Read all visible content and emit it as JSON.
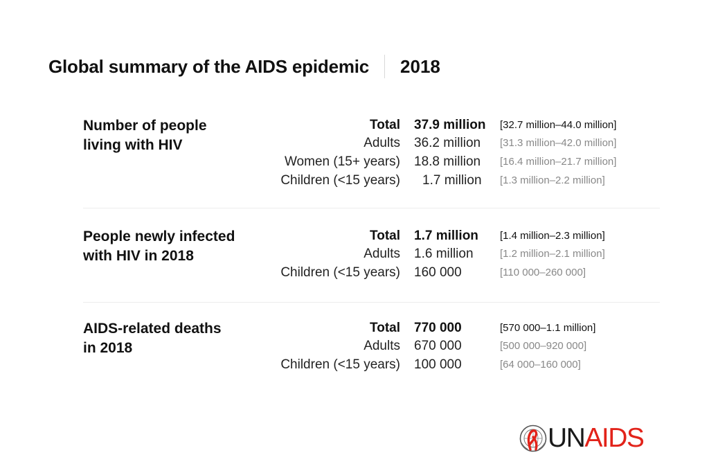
{
  "header": {
    "title": "Global summary of the AIDS epidemic",
    "year": "2018"
  },
  "sections": [
    {
      "title_line1": "Number of people",
      "title_line2": "living with HIV",
      "rows": [
        {
          "label": "Total",
          "value": "37.9 million",
          "range": "[32.7 million–44.0 million]"
        },
        {
          "label": "Adults",
          "value": "36.2 million",
          "range": "[31.3 million–42.0 million]"
        },
        {
          "label": "Women (15+ years)",
          "value": "18.8 million",
          "range": "[16.4 million–21.7 million]"
        },
        {
          "label": "Children (<15 years)",
          "value": "1.7 million",
          "range": "[1.3 million–2.2 million]"
        }
      ]
    },
    {
      "title_line1": "People newly infected",
      "title_line2": "with HIV in 2018",
      "rows": [
        {
          "label": "Total",
          "value": "1.7 million",
          "range": "[1.4 million–2.3 million]"
        },
        {
          "label": "Adults",
          "value": "1.6 million",
          "range": "[1.2 million–2.1 million]"
        },
        {
          "label": "Children (<15 years)",
          "value": "160 000",
          "range": "[110 000–260 000]"
        }
      ]
    },
    {
      "title_line1": "AIDS-related deaths",
      "title_line2": "in 2018",
      "rows": [
        {
          "label": "Total",
          "value": "770 000",
          "range": "[570 000–1.1 million]"
        },
        {
          "label": "Adults",
          "value": "670 000",
          "range": "[500 000–920 000]"
        },
        {
          "label": "Children (<15 years)",
          "value": "100 000",
          "range": "[64 000–160 000]"
        }
      ]
    }
  ],
  "logo": {
    "un": "UN",
    "aids": "AIDS",
    "emblem_icon": "un-emblem-red-ribbon-icon"
  },
  "colors": {
    "brand_red": "#e2231a",
    "text_dark": "#111111",
    "range_gray": "#888888",
    "divider": "#ececec"
  }
}
